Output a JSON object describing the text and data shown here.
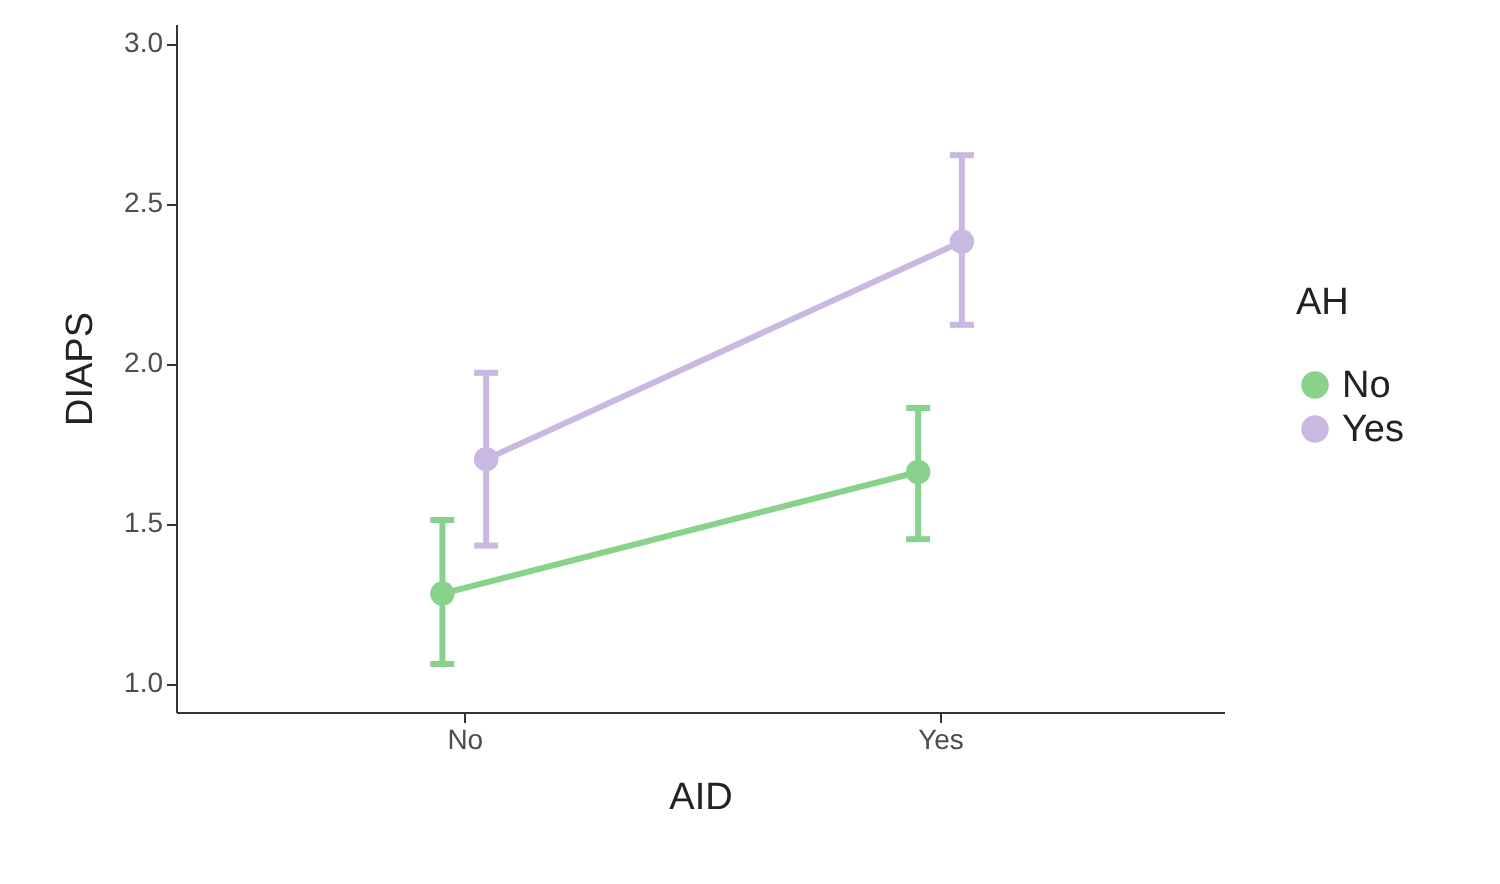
{
  "chart_data": {
    "type": "line",
    "xlabel": "AID",
    "ylabel": "DIAPS",
    "legend_title": "AH",
    "categories": [
      "No",
      "Yes"
    ],
    "series": [
      {
        "name": "No",
        "color": "#88d28c",
        "values": [
          1.28,
          1.66
        ],
        "errors": [
          [
            1.06,
            1.51
          ],
          [
            1.45,
            1.86
          ]
        ]
      },
      {
        "name": "Yes",
        "color": "#c9b8e0",
        "values": [
          1.7,
          2.38
        ],
        "errors": [
          [
            1.43,
            1.97
          ],
          [
            2.12,
            2.65
          ]
        ]
      }
    ],
    "ylim": [
      0.91,
      3.06
    ],
    "yticks": [
      {
        "value": 1,
        "label": "1.0"
      },
      1.5,
      {
        "value": 2,
        "label": "2.0"
      },
      2.5,
      {
        "value": 3,
        "label": "3.0"
      }
    ],
    "grid": false,
    "legend": "right",
    "marker": "circle",
    "line_style": "solid"
  }
}
